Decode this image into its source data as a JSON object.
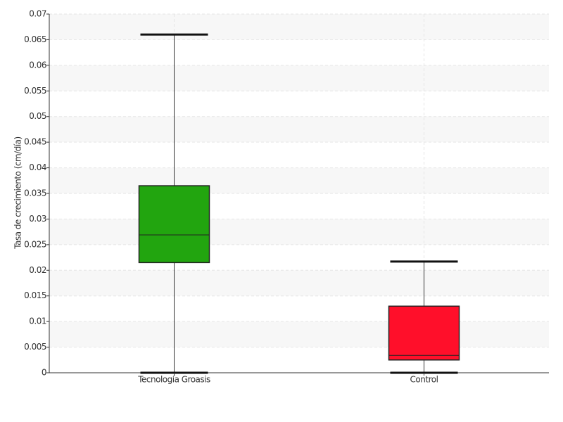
{
  "chart_data": {
    "type": "box",
    "y_label": "Tasa de crecimiento (cm/día)",
    "categories": [
      "Tecnología Groasis",
      "Control"
    ],
    "boxes": [
      {
        "min": 0,
        "q1": 0.0215,
        "median": 0.0269,
        "q3": 0.0365,
        "max": 0.066,
        "color": "#22a50f"
      },
      {
        "min": 0,
        "q1": 0.0025,
        "median": 0.0034,
        "q3": 0.013,
        "max": 0.0217,
        "color": "#ff0f2a"
      }
    ],
    "ylim": [
      0,
      0.07
    ],
    "yticks": [
      0,
      0.005,
      0.01,
      0.015,
      0.02,
      0.025,
      0.03,
      0.035,
      0.04,
      0.045,
      0.05,
      0.055,
      0.06,
      0.065,
      0.07
    ],
    "grid": true
  }
}
